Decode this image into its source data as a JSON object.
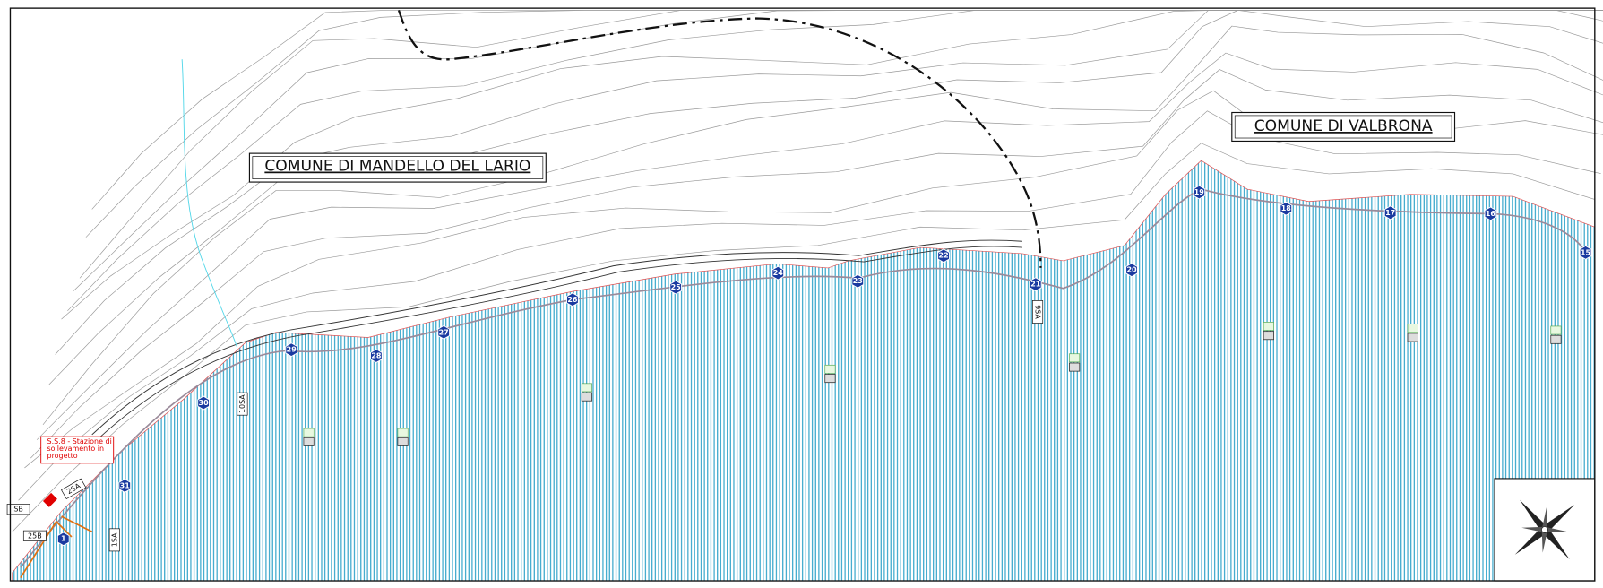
{
  "labels": {
    "mandello": "COMUNE DI MANDELLO DEL LARIO",
    "valbrona": "COMUNE DI VALBRONA"
  },
  "note": {
    "lines": [
      "S.S.8 - Stazione di",
      "sollevamento in",
      "progetto"
    ]
  },
  "nodes": [
    "1",
    "31",
    "30",
    "29",
    "28",
    "27",
    "26",
    "25",
    "24",
    "23",
    "22",
    "21",
    "20",
    "19",
    "18",
    "17",
    "16",
    "15"
  ],
  "pipe_labels": [
    "9SA",
    "10SA",
    "2SA",
    "SB",
    "25B",
    "1SA"
  ]
}
